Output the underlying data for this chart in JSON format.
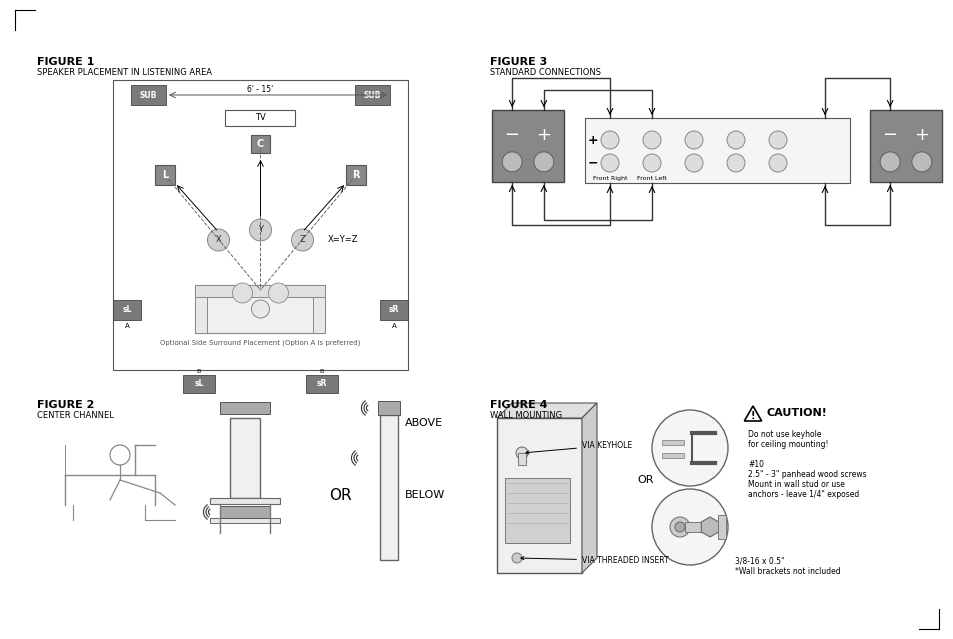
{
  "bg_color": "#ffffff",
  "fig1_title": "FIGURE 1",
  "fig1_subtitle": "SPEAKER PLACEMENT IN LISTENING AREA",
  "fig2_title": "FIGURE 2",
  "fig2_subtitle": "CENTER CHANNEL",
  "fig3_title": "FIGURE 3",
  "fig3_subtitle": "STANDARD CONNECTIONS",
  "fig4_title": "FIGURE 4",
  "fig4_subtitle": "WALL MOUNTING",
  "caution_title": "CAUTION!",
  "caution_line1": "Do not use keyhole",
  "caution_line2": "for ceiling mounting!",
  "caution_line3": "#10",
  "caution_line4": "2.5\" - 3\" panhead wood screws",
  "caution_line5": "Mount in wall stud or use",
  "caution_line6": "anchors - leave 1/4\" exposed",
  "bolt_line1": "3/8-16 x 0.5\"",
  "bolt_line2": "*Wall brackets not included",
  "via_keyhole": "VIA KEYHOLE",
  "via_insert": "VIA THREADED INSERT",
  "or_text": "OR",
  "above_text": "ABOVE",
  "below_text": "BELOW",
  "xyz_text": "X=Y=Z",
  "distance_text": "6' - 15'",
  "optional_text": "Optional Side Surround Placement (Option A is preferred)",
  "front_right": "Front Right",
  "front_left": "Front Left"
}
